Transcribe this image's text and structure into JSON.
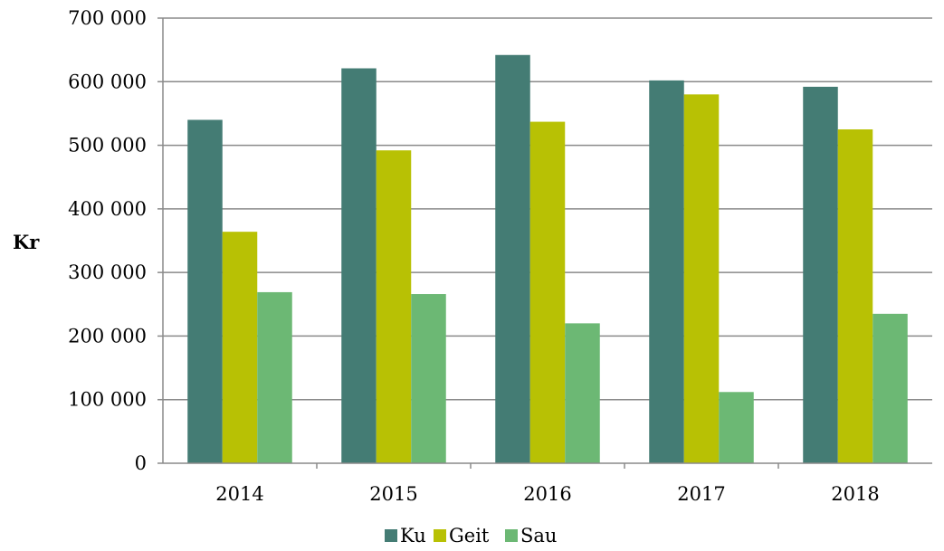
{
  "chart_data": {
    "type": "bar",
    "title": "",
    "xlabel": "",
    "ylabel": "Kr",
    "ylim": [
      0,
      700000
    ],
    "y_ticks": [
      0,
      100000,
      200000,
      300000,
      400000,
      500000,
      600000,
      700000
    ],
    "y_tick_labels": [
      "0",
      "100 000",
      "200 000",
      "300 000",
      "400 000",
      "500 000",
      "600 000",
      "700 000"
    ],
    "categories": [
      "2014",
      "2015",
      "2016",
      "2017",
      "2018"
    ],
    "series": [
      {
        "name": "Ku",
        "color": "#447c74",
        "values": [
          540000,
          621000,
          642000,
          602000,
          592000
        ]
      },
      {
        "name": "Geit",
        "color": "#b8c104",
        "values": [
          364000,
          492000,
          537000,
          580000,
          525000
        ]
      },
      {
        "name": "Sau",
        "color": "#6cb874",
        "values": [
          269000,
          266000,
          220000,
          112000,
          235000
        ]
      }
    ],
    "grid": true,
    "legend_position": "bottom"
  }
}
